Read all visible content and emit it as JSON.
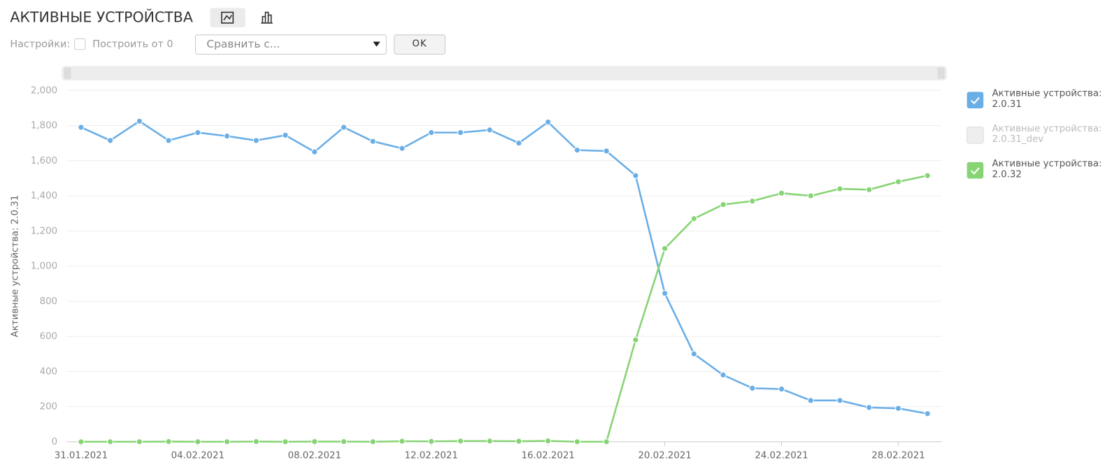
{
  "toolbar": {
    "title": "АКТИВНЫЕ УСТРОЙСТВА",
    "settings_label": "Настройки:",
    "checkbox_label": "Построить от 0",
    "compare_placeholder": "Сравнить с...",
    "ok_button": "OK"
  },
  "chart_data": {
    "type": "line",
    "ylabel": "Активные устройства: 2.0.31",
    "categories": [
      "31.01.2021",
      null,
      null,
      null,
      "04.02.2021",
      null,
      null,
      null,
      "08.02.2021",
      null,
      null,
      null,
      "12.02.2021",
      null,
      null,
      null,
      "16.02.2021",
      null,
      null,
      null,
      "20.02.2021",
      null,
      null,
      null,
      "24.02.2021",
      null,
      null,
      null,
      "28.02.2021",
      null
    ],
    "ylim": [
      0,
      2000
    ],
    "yticks": [
      0,
      200,
      400,
      600,
      800,
      {
        "value": 1000,
        "label": "1,000"
      },
      {
        "value": 1200,
        "label": "1,200"
      },
      {
        "value": 1400,
        "label": "1,400"
      },
      {
        "value": 1600,
        "label": "1,600"
      },
      {
        "value": 1800,
        "label": "1,800"
      },
      {
        "value": 2000,
        "label": "2,000"
      }
    ],
    "grid": true,
    "series": [
      {
        "name": "Активные устройства: 2.0.31",
        "color": "#6aaee6",
        "visible": true,
        "values": [
          1790,
          1715,
          1825,
          1715,
          1760,
          1740,
          1715,
          1745,
          1650,
          1790,
          1710,
          1670,
          1760,
          1760,
          1775,
          1700,
          1820,
          1660,
          1655,
          1515,
          845,
          500,
          380,
          305,
          300,
          235,
          235,
          195,
          190,
          160
        ]
      },
      {
        "name": "Активные устройства: 2.0.31_dev",
        "color": "#e0e0e0",
        "visible": false
      },
      {
        "name": "Активные устройства: 2.0.32",
        "color": "#86d474",
        "visible": true,
        "values": [
          0,
          0,
          0,
          1,
          0,
          0,
          1,
          0,
          1,
          1,
          0,
          3,
          2,
          4,
          4,
          3,
          5,
          0,
          0,
          580,
          1100,
          1270,
          1350,
          1370,
          1415,
          1400,
          1440,
          1435,
          1480,
          1515
        ]
      }
    ]
  }
}
